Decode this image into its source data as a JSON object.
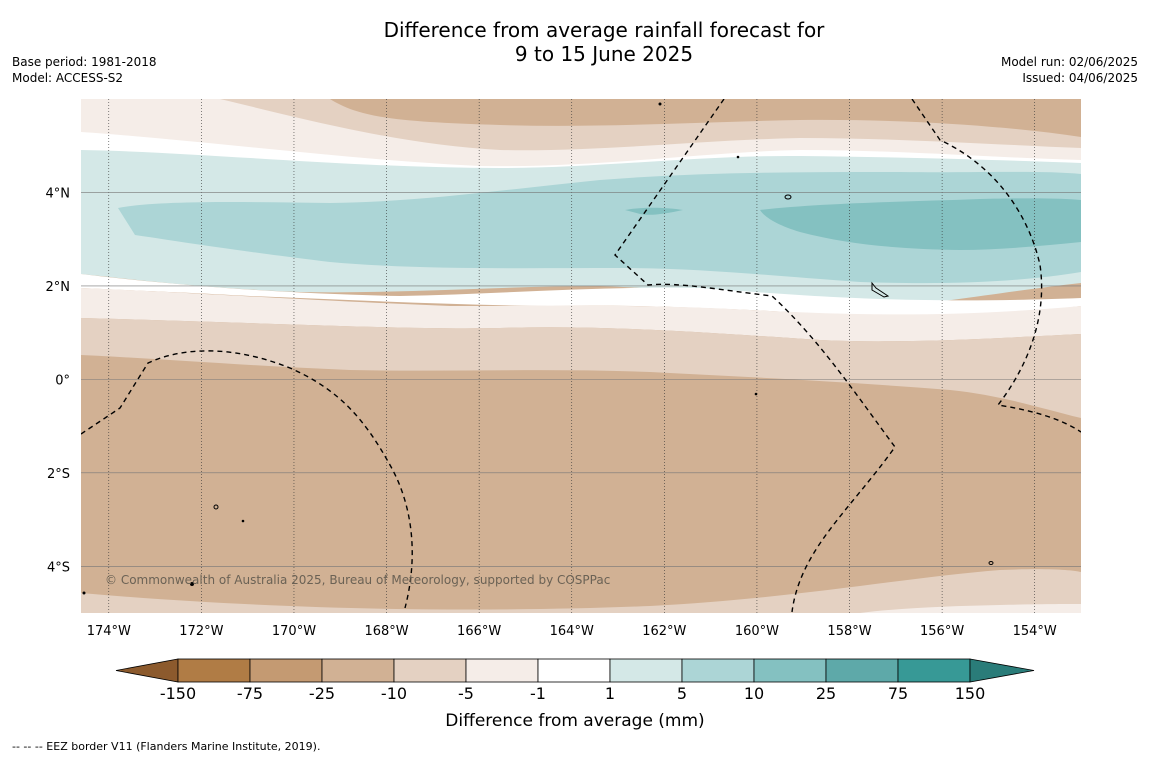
{
  "title": {
    "line1": "Difference from average rainfall forecast for",
    "line2": "9 to 15 June 2025"
  },
  "meta_left": {
    "base_period": "Base period: 1981-2018",
    "model": "Model: ACCESS-S2"
  },
  "meta_right": {
    "model_run": "Model run: 02/06/2025",
    "issued": "Issued: 04/06/2025"
  },
  "credit": "© Commonwealth of Australia 2025, Bureau of Meteorology, supported by COSPPac",
  "footer": "-- -- -- EEZ border V11 (Flanders Marine Institute, 2019).",
  "colorbar": {
    "title": "Difference from average (mm)",
    "ticks": [
      "-150",
      "-75",
      "-25",
      "-10",
      "-5",
      "-1",
      "1",
      "5",
      "10",
      "25",
      "75",
      "150"
    ],
    "colors": {
      "lt_-150": "#8c5a2d",
      "-150_-75": "#b07c45",
      "-75_-25": "#c49a72",
      "-25_-10": "#d1b194",
      "-10_-5": "#e4d1c2",
      "-5_-1": "#f5ede8",
      "-1_1": "#ffffff",
      "1_5": "#d4e8e7",
      "5_10": "#acd5d6",
      "10_25": "#84c1c1",
      "25_75": "#5ea9a9",
      "75_150": "#379996",
      "gt_150": "#2a7c79"
    }
  },
  "map": {
    "lon_range": [
      -174.6,
      -153.0
    ],
    "lat_range": [
      -5.0,
      6.0
    ],
    "lon_ticks": [
      -174,
      -172,
      -170,
      -168,
      -166,
      -164,
      -162,
      -160,
      -158,
      -156,
      -154
    ],
    "lon_labels": [
      "174°W",
      "172°W",
      "170°W",
      "168°W",
      "166°W",
      "164°W",
      "162°W",
      "160°W",
      "158°W",
      "156°W",
      "154°W"
    ],
    "lat_ticks": [
      4,
      2,
      0,
      -2,
      -4
    ],
    "lat_labels": [
      "4°N",
      "2°N",
      "0°",
      "2°S",
      "4°S"
    ]
  }
}
